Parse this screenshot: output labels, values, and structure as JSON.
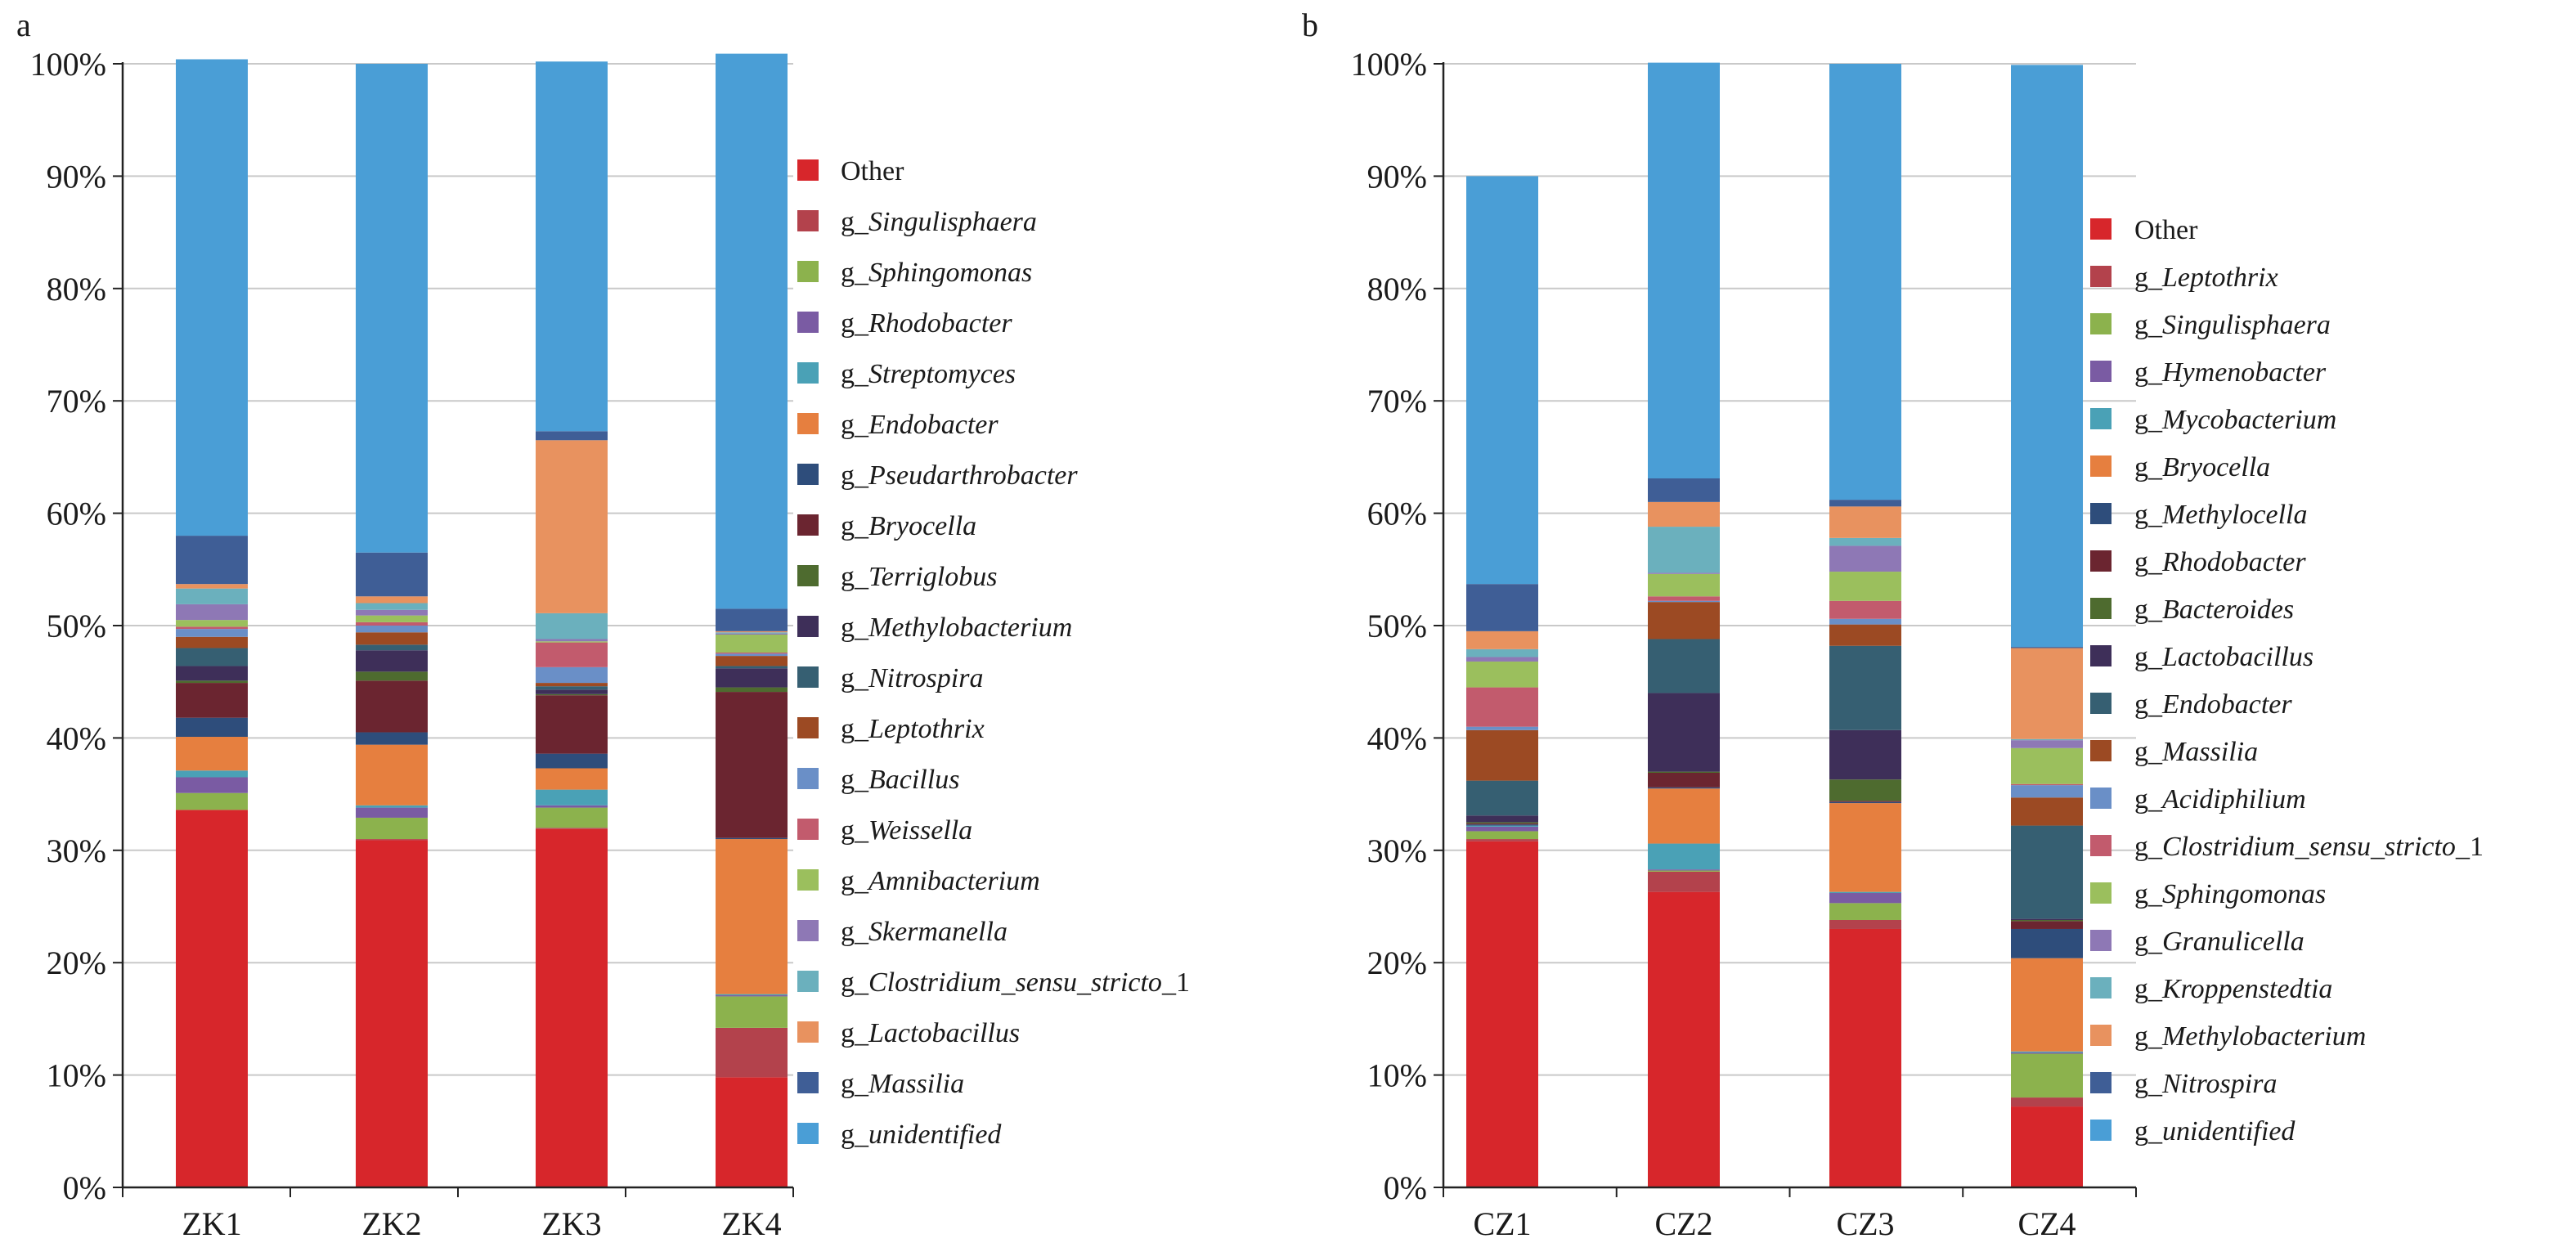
{
  "chart_data": [
    {
      "type": "bar",
      "stacked": true,
      "panel_label": "a",
      "categories": [
        "ZK1",
        "ZK2",
        "ZK3",
        "ZK4"
      ],
      "ylim": [
        0,
        100
      ],
      "yticks": [
        "0%",
        "10%",
        "20%",
        "30%",
        "40%",
        "50%",
        "60%",
        "70%",
        "80%",
        "90%",
        "100%"
      ],
      "grid": true,
      "legend_position": "right",
      "legend_order": "top-of-stack first",
      "series": [
        {
          "name": "Other",
          "prefix": "",
          "genus": "Other",
          "color": "#d7262b",
          "values": [
            33.6,
            30.9,
            31.9,
            9.8
          ]
        },
        {
          "name": "g_Singulisphaera",
          "prefix": "g_",
          "genus": "Singulisphaera",
          "color": "#b3424c",
          "values": [
            0.0,
            0.1,
            0.1,
            4.4
          ]
        },
        {
          "name": "g_Sphingomonas",
          "prefix": "g_",
          "genus": "Sphingomonas",
          "color": "#8cb24d",
          "values": [
            1.5,
            1.9,
            1.8,
            2.8
          ]
        },
        {
          "name": "g_Rhodobacter",
          "prefix": "g_",
          "genus": "Rhodobacter",
          "color": "#7a5ba3",
          "values": [
            1.4,
            0.9,
            0.2,
            0.1
          ]
        },
        {
          "name": "g_Streptomyces",
          "prefix": "g_",
          "genus": "Streptomyces",
          "color": "#4aa1b6",
          "values": [
            0.6,
            0.2,
            1.4,
            0.1
          ]
        },
        {
          "name": "g_Endobacter",
          "prefix": "g_",
          "genus": "Endobacter",
          "color": "#e67f3f",
          "values": [
            3.0,
            5.4,
            1.9,
            13.8
          ]
        },
        {
          "name": "g_Pseudarthrobacter",
          "prefix": "g_",
          "genus": "Pseudarthrobacter",
          "color": "#2e4d7b",
          "values": [
            1.7,
            1.1,
            1.3,
            0.1
          ]
        },
        {
          "name": "g_Bryocella",
          "prefix": "g_",
          "genus": "Bryocella",
          "color": "#6b2530",
          "values": [
            3.1,
            4.6,
            5.2,
            13.0
          ]
        },
        {
          "name": "g_Terriglobus",
          "prefix": "g_",
          "genus": "Terriglobus",
          "color": "#4e6b2f",
          "values": [
            0.2,
            0.8,
            0.1,
            0.4
          ]
        },
        {
          "name": "g_Methylobacterium",
          "prefix": "g_",
          "genus": "Methylobacterium",
          "color": "#3e2f59",
          "values": [
            1.3,
            1.9,
            0.4,
            1.7
          ]
        },
        {
          "name": "g_Nitrospira",
          "prefix": "g_",
          "genus": "Nitrospira",
          "color": "#365f72",
          "values": [
            1.6,
            0.5,
            0.3,
            0.2
          ]
        },
        {
          "name": "g_Leptothrix",
          "prefix": "g_",
          "genus": "Leptothrix",
          "color": "#9c4a23",
          "values": [
            1.0,
            1.1,
            0.3,
            0.9
          ]
        },
        {
          "name": "g_Bacillus",
          "prefix": "g_",
          "genus": "Bacillus",
          "color": "#6a8fc7",
          "values": [
            0.7,
            0.6,
            1.4,
            0.2
          ]
        },
        {
          "name": "g_Weissella",
          "prefix": "g_",
          "genus": "Weissella",
          "color": "#c25b6d",
          "values": [
            0.2,
            0.3,
            2.2,
            0.1
          ]
        },
        {
          "name": "g_Amnibacterium",
          "prefix": "g_",
          "genus": "Amnibacterium",
          "color": "#9bbf5d",
          "values": [
            0.6,
            0.6,
            0.1,
            1.6
          ]
        },
        {
          "name": "g_Skermanella",
          "prefix": "g_",
          "genus": "Skermanella",
          "color": "#8e78b5",
          "values": [
            1.4,
            0.5,
            0.2,
            0.1
          ]
        },
        {
          "name": "g_Clostridium_sensu_stricto_1",
          "prefix": "g_",
          "genus": "Clostridium_sensu_stricto",
          "suffix": "_1",
          "color": "#6bb0bd",
          "values": [
            1.4,
            0.6,
            2.3,
            0.1
          ]
        },
        {
          "name": "g_Lactobacillus",
          "prefix": "g_",
          "genus": "Lactobacillus",
          "color": "#e8925f",
          "values": [
            0.4,
            0.6,
            15.4,
            0.1
          ]
        },
        {
          "name": "g_Massilia",
          "prefix": "g_",
          "genus": "Massilia",
          "color": "#3f5e96",
          "values": [
            4.3,
            3.9,
            0.8,
            2.0
          ]
        },
        {
          "name": "g_unidentified",
          "prefix": "g_",
          "genus": "unidentified",
          "color": "#4a9ed6",
          "values": [
            42.4,
            43.5,
            32.9,
            49.4
          ]
        }
      ]
    },
    {
      "type": "bar",
      "stacked": true,
      "panel_label": "b",
      "categories": [
        "CZ1",
        "CZ2",
        "CZ3",
        "CZ4"
      ],
      "ylim": [
        0,
        100
      ],
      "yticks": [
        "0%",
        "10%",
        "20%",
        "30%",
        "40%",
        "50%",
        "60%",
        "70%",
        "80%",
        "90%",
        "100%"
      ],
      "grid": true,
      "legend_position": "right",
      "legend_order": "top-of-stack first",
      "series": [
        {
          "name": "Other",
          "prefix": "",
          "genus": "Other",
          "color": "#d7262b",
          "values": [
            30.8,
            26.3,
            23.0,
            7.2
          ]
        },
        {
          "name": "g_Leptothrix",
          "prefix": "g_",
          "genus": "Leptothrix",
          "color": "#b3424c",
          "values": [
            0.2,
            1.8,
            0.8,
            0.8
          ]
        },
        {
          "name": "g_Singulisphaera",
          "prefix": "g_",
          "genus": "Singulisphaera",
          "color": "#8cb24d",
          "values": [
            0.7,
            0.1,
            1.5,
            3.9
          ]
        },
        {
          "name": "g_Hymenobacter",
          "prefix": "g_",
          "genus": "Hymenobacter",
          "color": "#7a5ba3",
          "values": [
            0.4,
            0.1,
            0.9,
            0.1
          ]
        },
        {
          "name": "g_Mycobacterium",
          "prefix": "g_",
          "genus": "Mycobacterium",
          "color": "#4aa1b6",
          "values": [
            0.1,
            2.3,
            0.1,
            0.1
          ]
        },
        {
          "name": "g_Bryocella",
          "prefix": "g_",
          "genus": "Bryocella",
          "color": "#e67f3f",
          "values": [
            0.0,
            4.9,
            7.9,
            8.3
          ]
        },
        {
          "name": "g_Methylocella",
          "prefix": "g_",
          "genus": "Methylocella",
          "color": "#2e4d7b",
          "values": [
            0.1,
            0.1,
            0.1,
            2.6
          ]
        },
        {
          "name": "g_Rhodobacter",
          "prefix": "g_",
          "genus": "Rhodobacter",
          "color": "#6b2530",
          "values": [
            0.1,
            1.3,
            0.1,
            0.7
          ]
        },
        {
          "name": "g_Bacteroides",
          "prefix": "g_",
          "genus": "Bacteroides",
          "color": "#4e6b2f",
          "values": [
            0.1,
            0.1,
            1.9,
            0.1
          ]
        },
        {
          "name": "g_Lactobacillus",
          "prefix": "g_",
          "genus": "Lactobacillus",
          "color": "#3e2f59",
          "values": [
            0.6,
            7.0,
            4.4,
            0.1
          ]
        },
        {
          "name": "g_Endobacter",
          "prefix": "g_",
          "genus": "Endobacter",
          "color": "#365f72",
          "values": [
            3.1,
            4.8,
            7.5,
            8.3
          ]
        },
        {
          "name": "g_Massilia",
          "prefix": "g_",
          "genus": "Massilia",
          "color": "#9c4a23",
          "values": [
            4.5,
            3.3,
            1.9,
            2.5
          ]
        },
        {
          "name": "g_Acidiphilium",
          "prefix": "g_",
          "genus": "Acidiphilium",
          "color": "#6a8fc7",
          "values": [
            0.3,
            0.1,
            0.5,
            1.1
          ]
        },
        {
          "name": "g_Clostridium_sensu_stricto_1",
          "prefix": "g_",
          "genus": "Clostridium_sensu_stricto",
          "suffix": "_1",
          "color": "#c25b6d",
          "values": [
            3.5,
            0.4,
            1.6,
            0.1
          ]
        },
        {
          "name": "g_Sphingomonas",
          "prefix": "g_",
          "genus": "Sphingomonas",
          "color": "#9bbf5d",
          "values": [
            2.3,
            2.0,
            2.6,
            3.2
          ]
        },
        {
          "name": "g_Granulicella",
          "prefix": "g_",
          "genus": "Granulicella",
          "color": "#8e78b5",
          "values": [
            0.4,
            0.1,
            2.3,
            0.7
          ]
        },
        {
          "name": "g_Kroppenstedtia",
          "prefix": "g_",
          "genus": "Kroppenstedtia",
          "color": "#6bb0bd",
          "values": [
            0.7,
            4.1,
            0.7,
            0.1
          ]
        },
        {
          "name": "g_Methylobacterium",
          "prefix": "g_",
          "genus": "Methylobacterium",
          "color": "#e8925f",
          "values": [
            1.6,
            2.2,
            2.8,
            8.1
          ]
        },
        {
          "name": "g_Nitrospira",
          "prefix": "g_",
          "genus": "Nitrospira",
          "color": "#3f5e96",
          "values": [
            4.2,
            2.1,
            0.6,
            0.1
          ]
        },
        {
          "name": "g_unidentified",
          "prefix": "g_",
          "genus": "unidentified",
          "color": "#4a9ed6",
          "values": [
            36.3,
            37.0,
            38.8,
            51.8
          ]
        }
      ]
    }
  ]
}
